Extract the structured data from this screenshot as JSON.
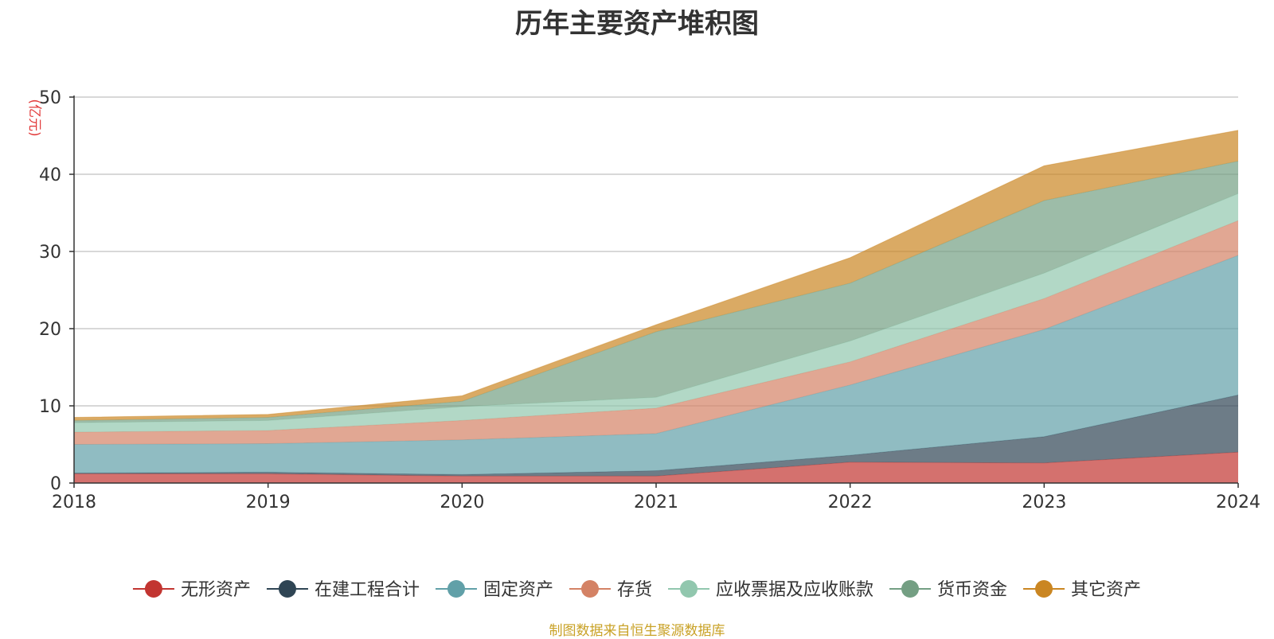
{
  "chart_data": {
    "type": "area",
    "stacked": true,
    "title": "历年主要资产堆积图",
    "y_unit_label": "(亿元)",
    "x": [
      "2018",
      "2019",
      "2020",
      "2021",
      "2022",
      "2023",
      "2024"
    ],
    "ylim": [
      0,
      50
    ],
    "yticks": [
      "0",
      "10",
      "20",
      "30",
      "40",
      "50"
    ],
    "grid": true,
    "legend_position": "bottom",
    "series": [
      {
        "name": "无形资产",
        "color": "#c23531",
        "values": [
          1.2,
          1.2,
          0.9,
          0.9,
          2.7,
          2.6,
          4.0
        ]
      },
      {
        "name": "在建工程合计",
        "color": "#2f4554",
        "values": [
          0.1,
          0.2,
          0.2,
          0.7,
          0.9,
          3.4,
          7.4
        ]
      },
      {
        "name": "固定资产",
        "color": "#61a0a8",
        "values": [
          3.7,
          3.7,
          4.5,
          4.8,
          9.1,
          13.9,
          18.1
        ]
      },
      {
        "name": "存货",
        "color": "#d48265",
        "values": [
          1.6,
          1.7,
          2.5,
          3.3,
          3.0,
          4.0,
          4.5
        ]
      },
      {
        "name": "应收票据及应收账款",
        "color": "#91c7ae",
        "values": [
          1.2,
          1.3,
          1.8,
          1.4,
          2.7,
          3.3,
          3.5
        ]
      },
      {
        "name": "货币资金",
        "color": "#749f83",
        "values": [
          0.3,
          0.4,
          0.7,
          8.5,
          7.5,
          9.4,
          4.2
        ]
      },
      {
        "name": "其它资产",
        "color": "#ca8622",
        "values": [
          0.4,
          0.4,
          0.7,
          0.9,
          3.3,
          4.5,
          4.0
        ]
      }
    ]
  },
  "footer": {
    "source_note": "制图数据来自恒生聚源数据库"
  }
}
